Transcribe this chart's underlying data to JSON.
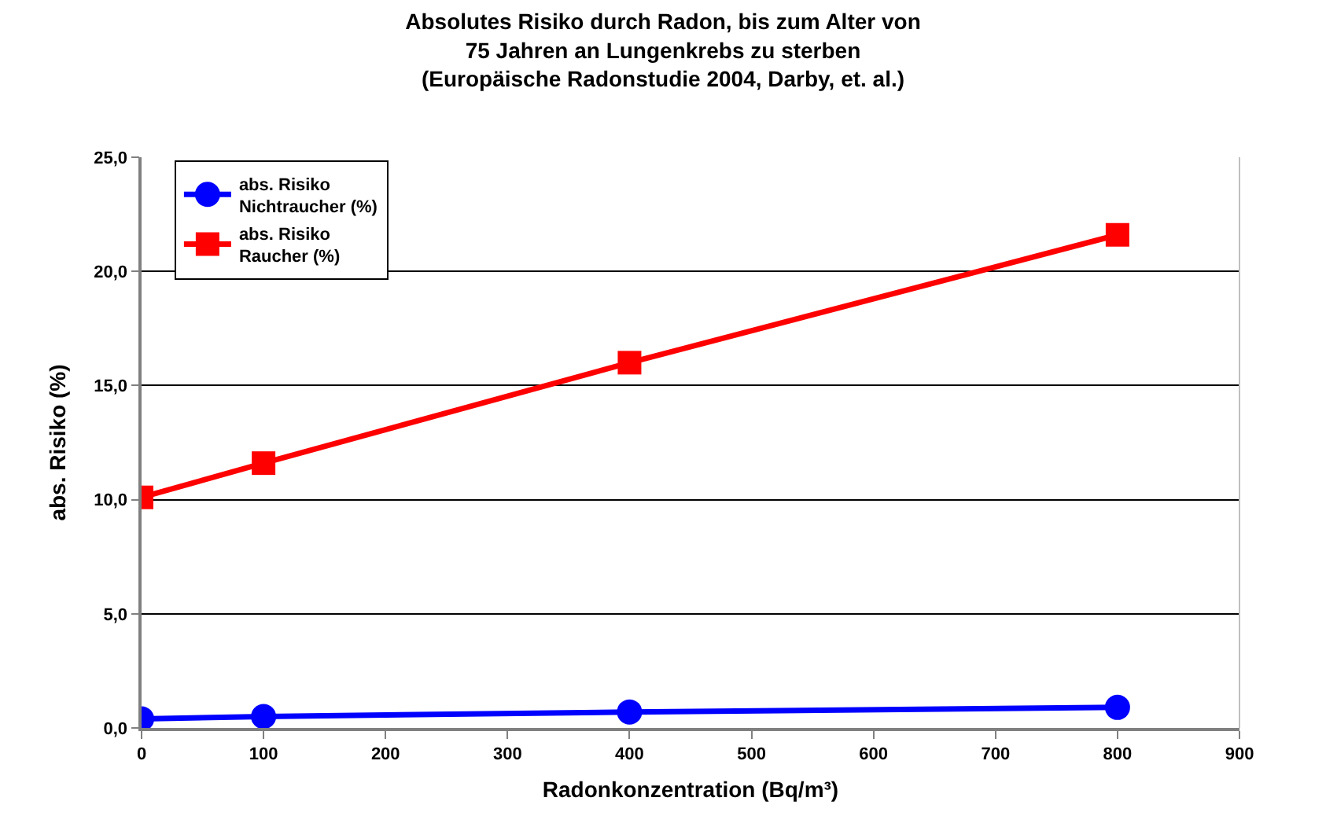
{
  "chart_data": {
    "type": "line",
    "title": "Absolutes Risiko durch Radon, bis zum Alter von\n75 Jahren an Lungenkrebs zu sterben\n(Europäische Radonstudie 2004, Darby, et. al.)",
    "xlabel": "Radonkonzentration (Bq/m³)",
    "ylabel": "abs. Risiko (%)",
    "x": [
      0,
      100,
      400,
      800
    ],
    "series": [
      {
        "name": "abs. Risiko\nNichtraucher (%)",
        "color": "#0000ff",
        "marker": "circle",
        "values": [
          0.4,
          0.5,
          0.7,
          0.9
        ]
      },
      {
        "name": "abs. Risiko\nRaucher (%)",
        "color": "#ff0000",
        "marker": "square",
        "values": [
          10.1,
          11.6,
          16.0,
          21.6
        ]
      }
    ],
    "xlim": [
      0,
      900
    ],
    "xticks": [
      0,
      100,
      200,
      300,
      400,
      500,
      600,
      700,
      800,
      900
    ],
    "ylim": [
      0,
      25
    ],
    "yticks": [
      {
        "value": 0,
        "label": "0,0"
      },
      {
        "value": 5,
        "label": "5,0"
      },
      {
        "value": 10,
        "label": "10,0"
      },
      {
        "value": 15,
        "label": "15,0"
      },
      {
        "value": 20,
        "label": "20,0"
      },
      {
        "value": 25,
        "label": "25,0"
      }
    ],
    "grid": "y",
    "legend": "top left",
    "line_style": "solid"
  }
}
